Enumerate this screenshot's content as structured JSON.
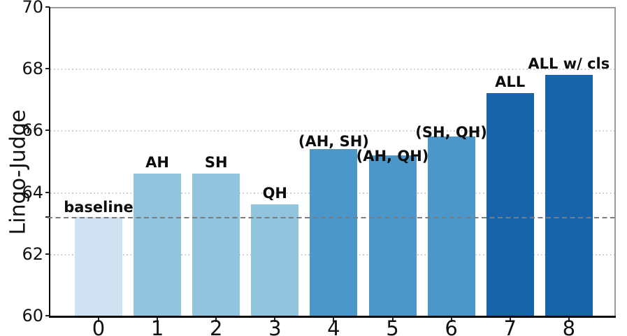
{
  "chart_data": {
    "type": "bar",
    "title": "",
    "xlabel": "",
    "ylabel": "Lingo-Judge",
    "categories": [
      "0",
      "1",
      "2",
      "3",
      "4",
      "5",
      "6",
      "7",
      "8"
    ],
    "values": [
      63.2,
      64.6,
      64.6,
      63.6,
      65.4,
      65.2,
      65.8,
      67.2,
      67.8
    ],
    "bar_labels": [
      "baseline",
      "AH",
      "SH",
      "QH",
      "(AH, SH)",
      "(AH, QH)",
      "(SH, QH)",
      "ALL",
      "ALL w/ cls"
    ],
    "bar_colors": [
      "#d0e2f2",
      "#93c4de",
      "#93c4de",
      "#93c4de",
      "#4b97c9",
      "#4b97c9",
      "#4b97c9",
      "#1864aa",
      "#1864aa"
    ],
    "ylim": [
      60,
      70
    ],
    "yticks": [
      60,
      62,
      64,
      66,
      68,
      70
    ],
    "gridline_values": [
      62,
      64,
      66,
      68
    ],
    "baseline_value": 63.2,
    "grid": "horizontal-dotted",
    "legend_position": "none",
    "colors": {
      "grid": "#c9c9c9",
      "baseline_line": "#7c7c7c",
      "spine_dark": "#0a0a0a",
      "spine_gray": "#9a9a9a",
      "text": "#111111"
    }
  }
}
